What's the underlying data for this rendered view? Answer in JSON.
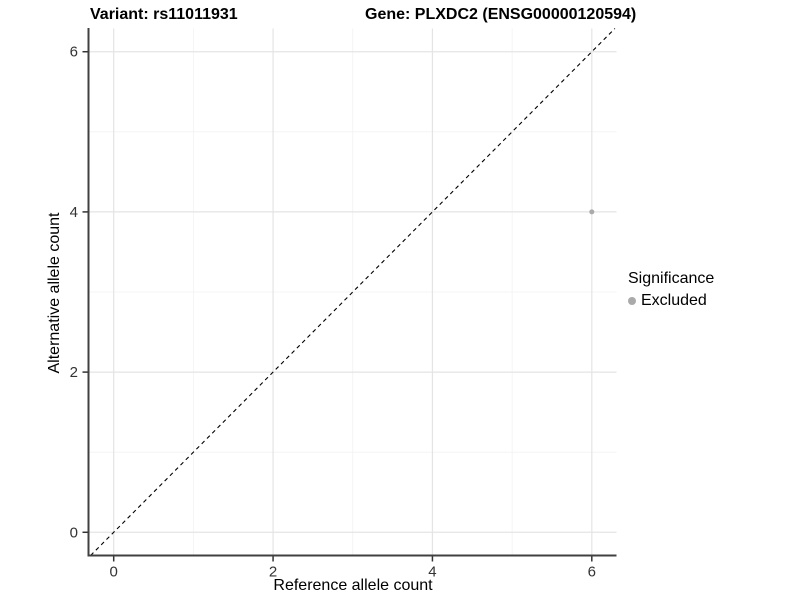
{
  "titles": {
    "variant": "Variant: rs11011931",
    "gene": "Gene: PLXDC2 (ENSG00000120594)"
  },
  "chart_data": {
    "type": "scatter",
    "title_left": "Variant: rs11011931",
    "title_right": "Gene: PLXDC2 (ENSG00000120594)",
    "xlabel": "Reference allele count",
    "ylabel": "Alternative allele count",
    "xlim": [
      -0.31,
      6.31
    ],
    "ylim": [
      -0.29,
      6.29
    ],
    "x_ticks": [
      0,
      2,
      4,
      6
    ],
    "y_ticks": [
      0,
      2,
      4,
      6
    ],
    "x_minor_ticks": [
      1,
      3,
      5
    ],
    "y_minor_ticks": [
      1,
      3,
      5
    ],
    "grid": true,
    "series": [
      {
        "name": "Excluded",
        "color": "#aaaaaa",
        "point_radius": 2.5,
        "points": [
          {
            "x": 6,
            "y": 4
          }
        ]
      }
    ],
    "reference_line": {
      "slope": 1,
      "intercept": 0,
      "style": "dashed",
      "color": "#000000"
    },
    "legend": {
      "position": "right",
      "title": "Significance",
      "items": [
        {
          "label": "Excluded",
          "color": "#aaaaaa"
        }
      ]
    }
  },
  "colors": {
    "background": "#ffffff",
    "major_grid": "#e4e4e4",
    "minor_grid": "#f2f2f2",
    "axis_line": "#404040",
    "tick_mark": "#333333",
    "tick_text": "#333333",
    "title_text": "#000000"
  }
}
